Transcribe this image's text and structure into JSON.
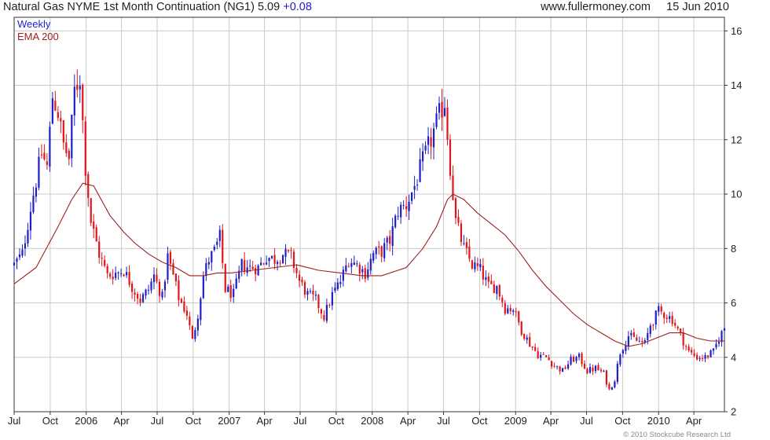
{
  "header": {
    "title": "Natural Gas NYME 1st Month Continuation (NG1)",
    "last": "5.09",
    "change": "+0.08",
    "site": "www.fullermoney.com",
    "date": "15 Jun 2010"
  },
  "footer": {
    "copyright": "© 2010 Stockcube Research Ltd"
  },
  "colors": {
    "up": "#1f1fc8",
    "down": "#e0161c",
    "ema": "#a01f1f",
    "grid": "#c9c9c9",
    "axis": "#333333"
  },
  "chart_data": {
    "type": "candlestick",
    "frequency_label": "Weekly",
    "ylim": [
      2,
      16.5
    ],
    "y_ticks": [
      "2",
      "4",
      "6",
      "8",
      "10",
      "12",
      "14",
      "16"
    ],
    "x_range": [
      "2005-07-01",
      "2010-06-18"
    ],
    "x_ticks": [
      {
        "label": "Jul",
        "date": "2005-07-01"
      },
      {
        "label": "Oct",
        "date": "2005-10-01"
      },
      {
        "label": "2006",
        "date": "2006-01-01"
      },
      {
        "label": "Apr",
        "date": "2006-04-01"
      },
      {
        "label": "Jul",
        "date": "2006-07-01"
      },
      {
        "label": "Oct",
        "date": "2006-10-01"
      },
      {
        "label": "2007",
        "date": "2007-01-01"
      },
      {
        "label": "Apr",
        "date": "2007-04-01"
      },
      {
        "label": "Jul",
        "date": "2007-07-01"
      },
      {
        "label": "Oct",
        "date": "2007-10-01"
      },
      {
        "label": "2008",
        "date": "2008-01-01"
      },
      {
        "label": "Apr",
        "date": "2008-04-01"
      },
      {
        "label": "Jul",
        "date": "2008-07-01"
      },
      {
        "label": "Oct",
        "date": "2008-10-01"
      },
      {
        "label": "2009",
        "date": "2009-01-01"
      },
      {
        "label": "Apr",
        "date": "2009-04-01"
      },
      {
        "label": "Jul",
        "date": "2009-07-01"
      },
      {
        "label": "Oct",
        "date": "2009-10-01"
      },
      {
        "label": "2010",
        "date": "2010-01-01"
      },
      {
        "label": "Apr",
        "date": "2010-04-01"
      }
    ],
    "legend": [
      "Weekly",
      "EMA 200"
    ],
    "price_path": [
      [
        "2005-07-01",
        7.4
      ],
      [
        "2005-07-22",
        7.8
      ],
      [
        "2005-08-12",
        9.5
      ],
      [
        "2005-08-26",
        10.5
      ],
      [
        "2005-09-09",
        11.5
      ],
      [
        "2005-09-23",
        11.0
      ],
      [
        "2005-10-07",
        13.6
      ],
      [
        "2005-10-21",
        13.0
      ],
      [
        "2005-11-04",
        11.8
      ],
      [
        "2005-11-18",
        11.3
      ],
      [
        "2005-12-02",
        13.8
      ],
      [
        "2005-12-16",
        14.3
      ],
      [
        "2005-12-30",
        11.0
      ],
      [
        "2006-01-13",
        9.0
      ],
      [
        "2006-02-03",
        7.8
      ],
      [
        "2006-02-24",
        7.0
      ],
      [
        "2006-03-17",
        7.1
      ],
      [
        "2006-04-07",
        7.2
      ],
      [
        "2006-04-28",
        6.6
      ],
      [
        "2006-05-19",
        6.1
      ],
      [
        "2006-06-09",
        6.5
      ],
      [
        "2006-06-23",
        7.0
      ],
      [
        "2006-07-14",
        6.2
      ],
      [
        "2006-07-28",
        7.7
      ],
      [
        "2006-08-11",
        7.0
      ],
      [
        "2006-08-25",
        6.2
      ],
      [
        "2006-09-15",
        5.6
      ],
      [
        "2006-09-29",
        4.6
      ],
      [
        "2006-10-13",
        5.6
      ],
      [
        "2006-10-27",
        7.0
      ],
      [
        "2006-11-10",
        7.6
      ],
      [
        "2006-11-24",
        7.9
      ],
      [
        "2006-12-08",
        8.4
      ],
      [
        "2006-12-22",
        6.5
      ],
      [
        "2007-01-12",
        6.3
      ],
      [
        "2007-02-02",
        7.4
      ],
      [
        "2007-02-23",
        7.3
      ],
      [
        "2007-03-16",
        7.3
      ],
      [
        "2007-04-06",
        7.7
      ],
      [
        "2007-04-27",
        7.6
      ],
      [
        "2007-05-18",
        7.8
      ],
      [
        "2007-06-08",
        7.7
      ],
      [
        "2007-06-29",
        6.8
      ],
      [
        "2007-07-20",
        6.3
      ],
      [
        "2007-08-10",
        6.1
      ],
      [
        "2007-08-31",
        5.5
      ],
      [
        "2007-09-21",
        6.3
      ],
      [
        "2007-10-12",
        6.8
      ],
      [
        "2007-11-02",
        7.6
      ],
      [
        "2007-11-23",
        7.4
      ],
      [
        "2007-12-14",
        7.1
      ],
      [
        "2008-01-04",
        7.8
      ],
      [
        "2008-01-25",
        7.9
      ],
      [
        "2008-02-15",
        8.3
      ],
      [
        "2008-03-07",
        9.4
      ],
      [
        "2008-03-28",
        9.6
      ],
      [
        "2008-04-18",
        10.3
      ],
      [
        "2008-05-09",
        11.2
      ],
      [
        "2008-05-30",
        12.0
      ],
      [
        "2008-06-20",
        12.9
      ],
      [
        "2008-07-04",
        13.4
      ],
      [
        "2008-07-18",
        11.0
      ],
      [
        "2008-08-01",
        9.0
      ],
      [
        "2008-08-22",
        8.0
      ],
      [
        "2008-09-12",
        7.4
      ],
      [
        "2008-10-03",
        7.2
      ],
      [
        "2008-10-24",
        6.6
      ],
      [
        "2008-11-14",
        6.6
      ],
      [
        "2008-12-05",
        5.8
      ],
      [
        "2008-12-26",
        5.8
      ],
      [
        "2009-01-16",
        5.0
      ],
      [
        "2009-02-06",
        4.5
      ],
      [
        "2009-02-27",
        4.1
      ],
      [
        "2009-03-20",
        4.0
      ],
      [
        "2009-04-10",
        3.7
      ],
      [
        "2009-05-01",
        3.5
      ],
      [
        "2009-05-22",
        3.9
      ],
      [
        "2009-06-12",
        4.0
      ],
      [
        "2009-07-03",
        3.5
      ],
      [
        "2009-07-24",
        3.6
      ],
      [
        "2009-08-14",
        3.4
      ],
      [
        "2009-08-28",
        2.8
      ],
      [
        "2009-09-11",
        3.2
      ],
      [
        "2009-09-25",
        4.2
      ],
      [
        "2009-10-16",
        4.8
      ],
      [
        "2009-11-06",
        4.6
      ],
      [
        "2009-11-27",
        4.5
      ],
      [
        "2009-12-11",
        5.2
      ],
      [
        "2010-01-01",
        5.7
      ],
      [
        "2010-01-15",
        5.6
      ],
      [
        "2010-02-05",
        5.4
      ],
      [
        "2010-02-26",
        4.8
      ],
      [
        "2010-03-19",
        4.2
      ],
      [
        "2010-04-09",
        4.0
      ],
      [
        "2010-04-30",
        4.0
      ],
      [
        "2010-05-21",
        4.2
      ],
      [
        "2010-06-04",
        4.7
      ],
      [
        "2010-06-18",
        5.09
      ]
    ],
    "ema_path": [
      [
        "2005-07-01",
        6.7
      ],
      [
        "2005-08-26",
        7.3
      ],
      [
        "2005-10-21",
        8.8
      ],
      [
        "2005-11-25",
        9.8
      ],
      [
        "2005-12-23",
        10.4
      ],
      [
        "2006-01-20",
        10.3
      ],
      [
        "2006-03-03",
        9.2
      ],
      [
        "2006-04-07",
        8.6
      ],
      [
        "2006-05-05",
        8.2
      ],
      [
        "2006-06-09",
        7.8
      ],
      [
        "2006-07-14",
        7.5
      ],
      [
        "2006-08-18",
        7.3
      ],
      [
        "2006-09-22",
        7.0
      ],
      [
        "2006-10-27",
        7.0
      ],
      [
        "2006-12-01",
        7.1
      ],
      [
        "2007-01-05",
        7.1
      ],
      [
        "2007-03-02",
        7.2
      ],
      [
        "2007-04-27",
        7.3
      ],
      [
        "2007-06-22",
        7.4
      ],
      [
        "2007-08-17",
        7.2
      ],
      [
        "2007-10-12",
        7.1
      ],
      [
        "2007-12-07",
        7.0
      ],
      [
        "2008-01-25",
        7.0
      ],
      [
        "2008-03-28",
        7.3
      ],
      [
        "2008-05-09",
        8.0
      ],
      [
        "2008-06-13",
        8.8
      ],
      [
        "2008-07-11",
        9.8
      ],
      [
        "2008-07-25",
        10.0
      ],
      [
        "2008-08-22",
        9.8
      ],
      [
        "2008-09-26",
        9.3
      ],
      [
        "2008-10-31",
        8.9
      ],
      [
        "2008-12-05",
        8.5
      ],
      [
        "2009-01-09",
        7.9
      ],
      [
        "2009-02-13",
        7.2
      ],
      [
        "2009-03-20",
        6.6
      ],
      [
        "2009-04-24",
        6.1
      ],
      [
        "2009-05-29",
        5.6
      ],
      [
        "2009-07-03",
        5.2
      ],
      [
        "2009-08-07",
        4.9
      ],
      [
        "2009-09-11",
        4.6
      ],
      [
        "2009-10-16",
        4.4
      ],
      [
        "2009-11-20",
        4.5
      ],
      [
        "2009-12-25",
        4.7
      ],
      [
        "2010-01-29",
        4.9
      ],
      [
        "2010-03-05",
        4.9
      ],
      [
        "2010-04-09",
        4.7
      ],
      [
        "2010-05-14",
        4.6
      ],
      [
        "2010-06-18",
        4.6
      ]
    ]
  }
}
